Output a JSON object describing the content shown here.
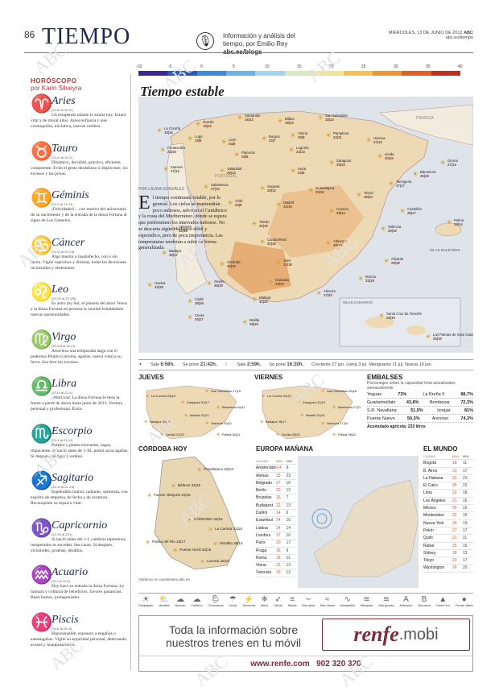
{
  "header": {
    "page_number": "86",
    "section": "TIEMPO",
    "blog_line1": "Información y análisis del",
    "blog_line2": "tiempo, por Emilio Rey",
    "blog_url": "abc.es/blogs",
    "date": "MIÉRCOLES, 13 DE JUNIO DE 2012",
    "paper": "ABC",
    "web": "abc.es/tiempo"
  },
  "temp_scale": [
    "-10",
    "-5",
    "0",
    "5",
    "10",
    "15",
    "20",
    "25",
    "30",
    "35",
    "40"
  ],
  "temp_colors": [
    "#3a2a8a",
    "#2c58b8",
    "#3f8ad0",
    "#6fb3e0",
    "#a7d3ec",
    "#d9e9c8",
    "#f3e39a",
    "#f1c060",
    "#e8963a",
    "#d9602a",
    "#b8321e"
  ],
  "map_title": "Tiempo estable",
  "intro": {
    "byline": "POR LAURA GONZÁLEZ",
    "drop_cap": "E",
    "text": "l tiempo continuará estable, por lo general. Los cielos se mantendrán poco nubosos, salvo en el Cantábrico y la costa del Mediterráneo, donde se espera que predominen los intervalos nubosos. No se descarta algún chubasco débil y esporádico, pero de poca importancia. Las temperaturas tenderán a subir de forma generalizada."
  },
  "horoscope": {
    "heading": "HORÓSCOPO",
    "author": "por Karin Silveyra",
    "signs": [
      {
        "symbol": "♈",
        "name": "Aries",
        "dates": "(21-III al 20-IV)",
        "text": "Un estupendo talante le anima hoy. Estará vital y de moral altos. Autoconfianza y aire cosmopolita, iniciativa, nuevos rumbos."
      },
      {
        "symbol": "♉",
        "name": "Tauro",
        "dates": "(21-IV al 20-V)",
        "text": "Dinámico, decidido, práctico, eficiente, competente. Evite el gesto desdeñoso o displicente, los excesos y las prisas."
      },
      {
        "symbol": "♊",
        "name": "Géminis",
        "dates": "(21-V al 21-VI)",
        "text": "¡Felicidades!... con motivo del aniversario de su nacimiento y de la entrada de la diosa Fortuna al signo de Los Gemelos."
      },
      {
        "symbol": "♋",
        "name": "Cáncer",
        "dates": "(22-VI al 22-VII)",
        "text": "Algo mustio o insatisfecho, con o sin razón. Vigile caprichos y tibiezas, todas las decisiones inconsultas y obsesiones."
      },
      {
        "symbol": "♌",
        "name": "Leo",
        "dates": "(23-VII al 22-VIII)",
        "text": "Es astro rey Sol, el planeta del amor Venus y la diosa Fortuna en persona le sonríen brindándole nuevas oportunidades."
      },
      {
        "symbol": "♍",
        "name": "Virgo",
        "dates": "(23-VIII al 22-IX)",
        "text": "Atraviesa una temporada larga con el poderoso Plutón (carisma, agallas, nueva vida) a su favor. Sea leve los excesos."
      },
      {
        "symbol": "♎",
        "name": "Libra",
        "dates": "(23-IX al 22-X)",
        "text": "¡Albricias! La diosa Fortuna le besa la frente a partir de ahora hasta junio de 2013. Ventura personal y profesional. Éxito."
      },
      {
        "symbol": "♏",
        "name": "Escorpio",
        "dates": "(23-X al 21-XI)",
        "text": "Palabra y pluma elocuente, sagaz, impaciente. Si nació antes de 1-XI, podrá sacar agallas. Si después, mañana y ordena."
      },
      {
        "symbol": "♐",
        "name": "Sagitario",
        "dates": "(22-XI al 21-XII)",
        "text": "Espléndido humor, radiante, optimista, con espíritu de empresa, de fecha y de aventura. Reconquiste su espacio vital."
      },
      {
        "symbol": "♑",
        "name": "Capricornio",
        "dates": "(22-XII al 20-I)",
        "text": "Si nació antes del 1-I, cambios repentinos, inesperados se suceden. Sea cauto. Si después, vicisitudes, pruebas, desafíos."
      },
      {
        "symbol": "♒",
        "name": "Acuario",
        "dates": "(21-I al 19-II)",
        "text": "Hoy hace su entrada la diosa Fortuna. Le mimará y colmará de beneficios, favores ganancias. Buen humor, protagonismo."
      },
      {
        "symbol": "♓",
        "name": "Piscis",
        "dates": "(20-II al 20-III)",
        "text": "Hipersensible, expuesto a engaños o autoengaños. Vigile su seguridad personal, detectando acosos y manipulaciones."
      }
    ]
  },
  "map_regions": {
    "portugal": "PORTUGAL",
    "francia": "FRANCIA",
    "baleares": "ISLAS BALEARES",
    "canarias": "ISLAS CANARIAS"
  },
  "cities": [
    {
      "n": "La Coruña",
      "t": "18|14"
    },
    {
      "n": "Oviedo",
      "t": "19|10"
    },
    {
      "n": "Santander",
      "t": "16|12"
    },
    {
      "n": "Bilbao",
      "t": "19|10"
    },
    {
      "n": "San Sebastián",
      "t": "18|14"
    },
    {
      "n": "Lugo",
      "t": "19|8"
    },
    {
      "n": "León",
      "t": "24|8"
    },
    {
      "n": "Burgos",
      "t": "23|7"
    },
    {
      "n": "Vitoria",
      "t": "20|9"
    },
    {
      "n": "Pamplona",
      "t": "24|11"
    },
    {
      "n": "Huesca",
      "t": "27|13"
    },
    {
      "n": "Girona",
      "t": "27|14"
    },
    {
      "n": "Pontevedra",
      "t": "22|15"
    },
    {
      "n": "Palencia",
      "t": "26|9"
    },
    {
      "n": "Logroño",
      "t": "24|13"
    },
    {
      "n": "Zaragoza",
      "t": "29|15"
    },
    {
      "n": "Lleida",
      "t": "30|16"
    },
    {
      "n": "Barcelona",
      "t": "25|19"
    },
    {
      "n": "Zamora",
      "t": "27|13"
    },
    {
      "n": "Valladolid",
      "t": "26|12"
    },
    {
      "n": "Soria",
      "t": "24|9"
    },
    {
      "n": "Tarragona",
      "t": "27|17"
    },
    {
      "n": "Salamanca",
      "t": "27|10"
    },
    {
      "n": "Segovia",
      "t": "25|12"
    },
    {
      "n": "Guadalajara",
      "t": "30|15"
    },
    {
      "n": "Teruel",
      "t": "28|10"
    },
    {
      "n": "Castellón",
      "t": "28|17"
    },
    {
      "n": "Ávila",
      "t": "25|9"
    },
    {
      "n": "Madrid",
      "t": "31|19"
    },
    {
      "n": "Cuenca",
      "t": "28|12"
    },
    {
      "n": "Palma",
      "t": "29|14"
    },
    {
      "n": "Cáceres",
      "t": "32|16"
    },
    {
      "n": "Toledo",
      "t": "32|16"
    },
    {
      "n": "Valencia",
      "t": "29|19"
    },
    {
      "n": "Badajoz",
      "t": "35|17"
    },
    {
      "n": "Ciudad Real",
      "t": "32|16"
    },
    {
      "n": "Albacete",
      "t": "28|14"
    },
    {
      "n": "Alicante",
      "t": "29|19"
    },
    {
      "n": "Córdoba",
      "t": "35|19"
    },
    {
      "n": "Jaén",
      "t": "32|19"
    },
    {
      "n": "Murcia",
      "t": "33|18"
    },
    {
      "n": "Huelva",
      "t": "33|18"
    },
    {
      "n": "Sevilla",
      "t": "36|18"
    },
    {
      "n": "Granada",
      "t": "33|15"
    },
    {
      "n": "Almería",
      "t": "27|20"
    },
    {
      "n": "Cádiz",
      "t": "28|18"
    },
    {
      "n": "Málaga",
      "t": "31|20"
    },
    {
      "n": "Ceuta",
      "t": "25|17"
    },
    {
      "n": "Melilla",
      "t": "28|19"
    },
    {
      "n": "Santa Cruz de Tenerife",
      "t": "26|19"
    },
    {
      "n": "Las Palmas de Gran Canaria",
      "t": "25|19"
    }
  ],
  "sunline": {
    "sale_label": "Sale",
    "sale": "6:56h.",
    "pone_label": "Se pone",
    "pone": "21:42h.",
    "luna_sale_label": "Sale",
    "luna_sale": "2:59h.",
    "luna_pone_label": "Se pone",
    "luna_pone": "16:20h.",
    "tides": "Creciente 27 jun. Llena 3 jul. Menguante 11 jul. Nueva 19 jun."
  },
  "jueves": {
    "title": "JUEVES",
    "cities": [
      "La Coruña 20|16",
      "San Sebastián 27|16",
      "Zaragoza 31|17",
      "Barcelona 26|19",
      "Badajoz 31|16",
      "Madrid 31|21",
      "Valencia 26|21",
      "Sevilla 37|20",
      "Palma 30|21"
    ]
  },
  "viernes": {
    "title": "VIERNES",
    "cities": [
      "La Coruña 20|15",
      "San Sebastián 26|16",
      "Zaragoza 31|19",
      "Barcelona 27|22",
      "Badajoz 28|17",
      "Madrid 31|19",
      "Valencia 27|24",
      "Sevilla 33|20",
      "Palma 28|22"
    ]
  },
  "embalses": {
    "title": "EMBALSES",
    "sub": "Porcentajes sobre la capacidad total actualizados semanalmente",
    "rows": [
      [
        "Yeguas",
        "73%",
        "La Breña II",
        "88,7%"
      ],
      [
        "Guadalmellato",
        "43,8%",
        "Bembézar",
        "72,3%"
      ],
      [
        "S.R. Navallana",
        "51,5%",
        "Iznájar",
        "81%"
      ],
      [
        "Puente Nuevo",
        "50,3%",
        "Arenoso",
        "74,3%"
      ]
    ],
    "total": "Acumulado agrícola: 233 litros"
  },
  "cordoba": {
    "title": "CÓRDOBA HOY",
    "towns": [
      "Pozoblanco 32|13",
      "Bélmez 33|15",
      "Fuente Obejuna 31|15",
      "CÓRDOBA 34|16",
      "La Carlota 33|15",
      "Palma del Río 34|17",
      "Puente Genil 32|15",
      "Montilla 35|15",
      "Lucena 32|15"
    ],
    "footer": "Visítenos en canalmeteo.abc.es"
  },
  "europa": {
    "title": "EUROPA MAÑANA",
    "headers": [
      "CIUDAD",
      "MAX",
      "MIN"
    ],
    "rows": [
      [
        "Amsterdam",
        "14",
        "8"
      ],
      [
        "Atenas",
        "33",
        "23"
      ],
      [
        "Belgrado",
        "27",
        "16"
      ],
      [
        "Berlín",
        "20",
        "12"
      ],
      [
        "Bruselas",
        "15",
        "7"
      ],
      [
        "Budapest",
        "22",
        "13"
      ],
      [
        "Dublín",
        "14",
        "6"
      ],
      [
        "Estambul",
        "24",
        "16"
      ],
      [
        "Lisboa",
        "24",
        "14"
      ],
      [
        "Londres",
        "17",
        "10"
      ],
      [
        "París",
        "20",
        "17"
      ],
      [
        "Praga",
        "16",
        "9"
      ],
      [
        "Roma",
        "18",
        "11"
      ],
      [
        "Viena",
        "23",
        "13"
      ],
      [
        "Varsovia",
        "19",
        "12"
      ]
    ]
  },
  "mundo": {
    "title": "EL MUNDO",
    "headers": [
      "CIUDAD",
      "MAX",
      "MIN"
    ],
    "rows": [
      [
        "Bogotá",
        "18",
        "11"
      ],
      [
        "B. Aires",
        "31",
        "17"
      ],
      [
        "La Habana",
        "31",
        "23"
      ],
      [
        "El Cairo",
        "35",
        "22"
      ],
      [
        "Lima",
        "22",
        "18"
      ],
      [
        "Los Ángeles",
        "21",
        "16"
      ],
      [
        "México",
        "25",
        "16"
      ],
      [
        "Montevideo",
        "22",
        "16"
      ],
      [
        "Nueva York",
        "24",
        "19"
      ],
      [
        "Pekín",
        "27",
        "17"
      ],
      [
        "Quito",
        "21",
        "11"
      ],
      [
        "Rabat",
        "25",
        "16"
      ],
      [
        "Sídney",
        "18",
        "12"
      ],
      [
        "Tokyo",
        "20",
        "17"
      ],
      [
        "Washington",
        "26",
        "20"
      ]
    ]
  },
  "legend": [
    "Despejado",
    "Variable",
    "Nuboso",
    "Cubierto",
    "Chubascos",
    "Lluvia",
    "Tormenta",
    "Nieve",
    "Viento",
    "Niebla",
    "Mar llana",
    "Mar rizada",
    "Marejadilla",
    "Marejada",
    "Mar gruesa",
    "Anticiclón",
    "Borrasca",
    "Frente frío",
    "Frente cálido"
  ],
  "legend_glyphs": [
    "☀",
    "⛅",
    "☁",
    "☁",
    "🌦",
    "☂",
    "⚡",
    "❄",
    "➶",
    "≡",
    "∼",
    "≈",
    "∿",
    "≋",
    "≋",
    "A",
    "B",
    "▲",
    "●"
  ],
  "ad": {
    "line1": "Toda la información sobre",
    "line2": "nuestros trenes en tu móvil",
    "brand": "renfe",
    "suffix": ".mobi",
    "url": "www.renfe.com",
    "phone": "902 320 320"
  },
  "watermark": "ABC"
}
